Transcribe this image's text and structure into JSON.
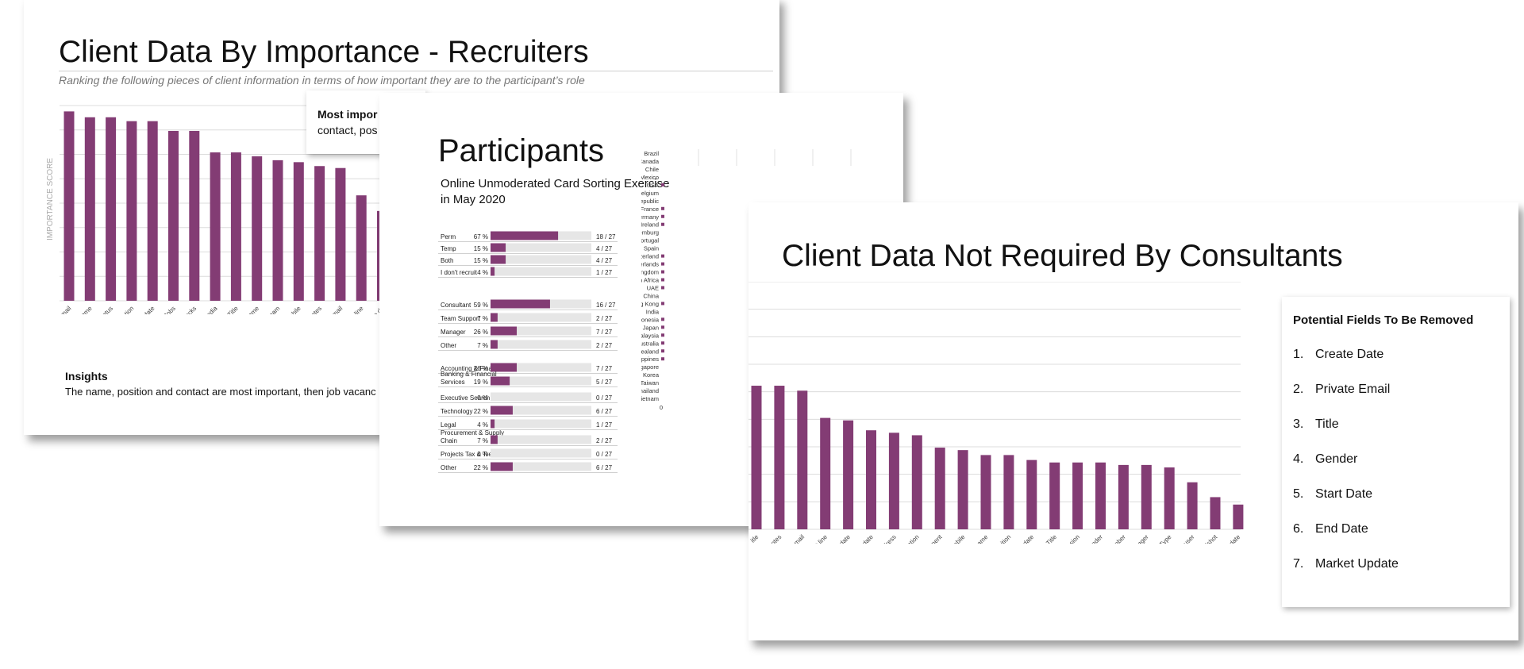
{
  "slide_recruiters": {
    "title": "Client Data By Importance - Recruiters",
    "subtitle": "Ranking the following pieces of client information in terms of how important they are to the participant’s role",
    "callout_title": "Most impor",
    "callout_text": "contact, pos",
    "insights_title": "Insights",
    "insights_text": "The name, position and contact are most important, then job vacanc"
  },
  "slide_participants": {
    "title": "Participants",
    "subtitle_line1": "Online Unmoderated Card Sorting Exercise",
    "subtitle_line2": "in May 2020"
  },
  "slide_consultants": {
    "title": "Client Data Not Required By Consultants",
    "fields_title": "Potential Fields To Be Removed",
    "fields": [
      {
        "num": "1.",
        "label": "Create Date"
      },
      {
        "num": "2.",
        "label": "Private Email"
      },
      {
        "num": "3.",
        "label": "Title"
      },
      {
        "num": "4.",
        "label": "Gender"
      },
      {
        "num": "5.",
        "label": "Start Date"
      },
      {
        "num": "6.",
        "label": "End Date"
      },
      {
        "num": "7.",
        "label": "Market Update"
      }
    ]
  },
  "colors": {
    "bar": "#833c74",
    "grid": "#dcdcdc",
    "track": "#e6e6e6"
  },
  "chart_data": [
    {
      "type": "bar",
      "id": "recruiter-importance",
      "title": "",
      "ylabel": "IMPORTANCE SCORE",
      "ylim": [
        0,
        100
      ],
      "grid": true,
      "categories": [
        "Work email",
        "Last name",
        "Candidate status",
        "Company/Organisation",
        "Last contact date",
        "Jobs",
        "Blocks",
        "Social media",
        "Title",
        "Preferred name",
        "Responsible team",
        "Work mobile",
        "Activity notes",
        "Private email",
        "Direct line",
        "Create da"
      ],
      "values": [
        97,
        94,
        94,
        92,
        92,
        87,
        87,
        76,
        76,
        74,
        72,
        71,
        69,
        68,
        54,
        46
      ]
    },
    {
      "type": "bar",
      "id": "participants-breakdown",
      "orientation": "horizontal",
      "xlim": [
        0,
        100
      ],
      "groups": [
        {
          "rows": [
            {
              "label": "Perm",
              "pct": "67 %",
              "value": 67,
              "count": "18 / 27"
            },
            {
              "label": "Temp",
              "pct": "15 %",
              "value": 15,
              "count": "4 / 27"
            },
            {
              "label": "Both",
              "pct": "15 %",
              "value": 15,
              "count": "4 / 27"
            },
            {
              "label": "I don't recruit",
              "pct": "4 %",
              "value": 4,
              "count": "1 / 27"
            }
          ]
        },
        {
          "rows": [
            {
              "label": "Consultant",
              "pct": "59 %",
              "value": 59,
              "count": "16 / 27"
            },
            {
              "label": "Team Support",
              "pct": "7 %",
              "value": 7,
              "count": "2 / 27"
            },
            {
              "label": "Manager",
              "pct": "26 %",
              "value": 26,
              "count": "7 / 27"
            },
            {
              "label": "Other",
              "pct": "7 %",
              "value": 7,
              "count": "2 / 27"
            }
          ]
        },
        {
          "rows": [
            {
              "label": "Accounting & Finance",
              "pct": "26 %",
              "value": 26,
              "count": "7 / 27"
            },
            {
              "label": "Banking & Financial|Services",
              "pct": "19 %",
              "value": 19,
              "count": "5 / 27"
            },
            {
              "label": "Executive Search",
              "pct": "0 %",
              "value": 0,
              "count": "0 / 27"
            },
            {
              "label": "Technology",
              "pct": "22 %",
              "value": 22,
              "count": "6 / 27"
            },
            {
              "label": "Legal",
              "pct": "4 %",
              "value": 4,
              "count": "1 / 27"
            },
            {
              "label": "Procurement & Supply|Chain",
              "pct": "7 %",
              "value": 7,
              "count": "2 / 27"
            },
            {
              "label": "Projects Tax & Treasury",
              "pct": "0 %",
              "value": 0,
              "count": "0 / 27"
            },
            {
              "label": "Other",
              "pct": "22 %",
              "value": 22,
              "count": "6 / 27"
            }
          ]
        }
      ]
    },
    {
      "type": "bar",
      "id": "participant-countries",
      "orientation": "horizontal",
      "tick_labels": [
        "0"
      ],
      "categories": [
        "Brazil",
        "Canada",
        "Chile",
        "Mexico",
        "USA",
        "Belgium",
        "Czech Republic",
        "France",
        "Germany",
        "Ireland",
        "Luxemburg",
        "Portugal",
        "Spain",
        "Switzerland",
        "The Netherlands",
        "United Kingdom",
        "South Africa",
        "UAE",
        "China",
        "Hong Kong",
        "India",
        "Indonesia",
        "Japan",
        "Malaysia",
        "Australia",
        "New Zealand",
        "Philippines",
        "Singapore",
        "South Korea",
        "Taiwan",
        "Thailand",
        "Vietnam"
      ],
      "values": [
        0,
        0,
        0,
        0,
        1,
        0,
        0,
        1,
        1,
        1,
        0,
        0,
        0,
        1,
        1,
        1,
        1,
        1,
        0,
        1,
        0,
        1,
        1,
        1,
        1,
        1,
        1,
        0,
        0,
        0,
        0,
        0
      ]
    },
    {
      "type": "bar",
      "id": "consultant-not-required",
      "title": "",
      "ylim": [
        0,
        100
      ],
      "grid": true,
      "categories": [
        "itle",
        "Activity notes",
        "Private email",
        "Direct line",
        "Create date",
        "Start date",
        "Address",
        "Location",
        "Department",
        "Private mobile",
        "First name",
        "Position",
        "Market update",
        "Job Title",
        "Extension",
        "Gender",
        "Switchboard number",
        "Manager",
        "Contact Type",
        "Responsible user",
        "Do not mailshot",
        "End date"
      ],
      "values": [
        58,
        58,
        56,
        45,
        44,
        40,
        39,
        38,
        33,
        32,
        30,
        30,
        28,
        27,
        27,
        27,
        26,
        26,
        25,
        19,
        13,
        10
      ]
    }
  ]
}
